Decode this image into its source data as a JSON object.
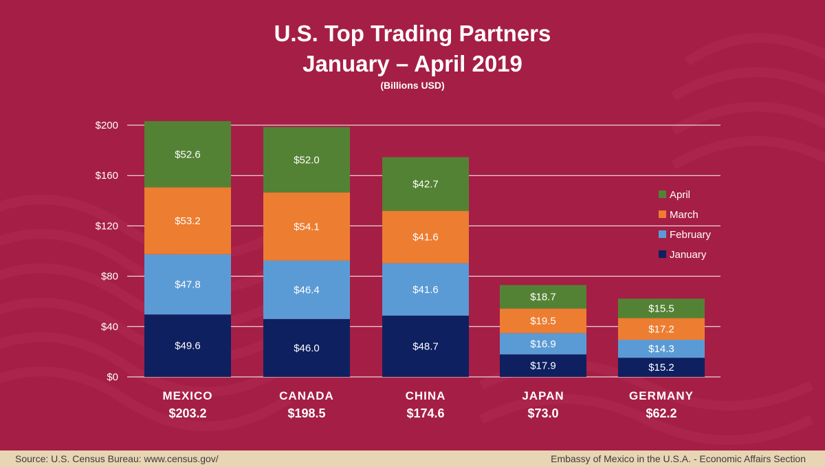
{
  "title_line1": "U.S. Top Trading Partners",
  "title_line2": "January – April 2019",
  "subtitle": "(Billions USD)",
  "footer": {
    "source": "Source: U.S. Census Bureau:     www.census.gov/",
    "organization": "Embassy of Mexico in the U.S.A. - Economic Affairs Section"
  },
  "colors": {
    "background": "#a51e45",
    "January": "#0f2060",
    "February": "#5b9bd5",
    "March": "#ed7d31",
    "April": "#548235",
    "footer": "#e8d5b4"
  },
  "chart_data": {
    "type": "bar",
    "stacked": true,
    "categories": [
      "MEXICO",
      "CANADA",
      "CHINA",
      "JAPAN",
      "GERMANY"
    ],
    "totals": [
      "$203.2",
      "$198.5",
      "$174.6",
      "$73.0",
      "$62.2"
    ],
    "series": [
      {
        "name": "January",
        "values": [
          49.6,
          46.0,
          48.7,
          17.9,
          15.2
        ]
      },
      {
        "name": "February",
        "values": [
          47.8,
          46.4,
          41.6,
          16.9,
          14.3
        ]
      },
      {
        "name": "March",
        "values": [
          53.2,
          54.1,
          41.6,
          19.5,
          17.2
        ]
      },
      {
        "name": "April",
        "values": [
          52.6,
          52.0,
          42.7,
          18.7,
          15.5
        ]
      }
    ],
    "value_prefix": "$",
    "ylim": [
      0,
      200
    ],
    "yticks": [
      "$0",
      "$40",
      "$80",
      "$120",
      "$160",
      "$200"
    ],
    "ytick_values": [
      0,
      40,
      80,
      120,
      160,
      200
    ],
    "grid": true,
    "legend_order": [
      "April",
      "March",
      "February",
      "January"
    ],
    "legend_position": "right"
  }
}
